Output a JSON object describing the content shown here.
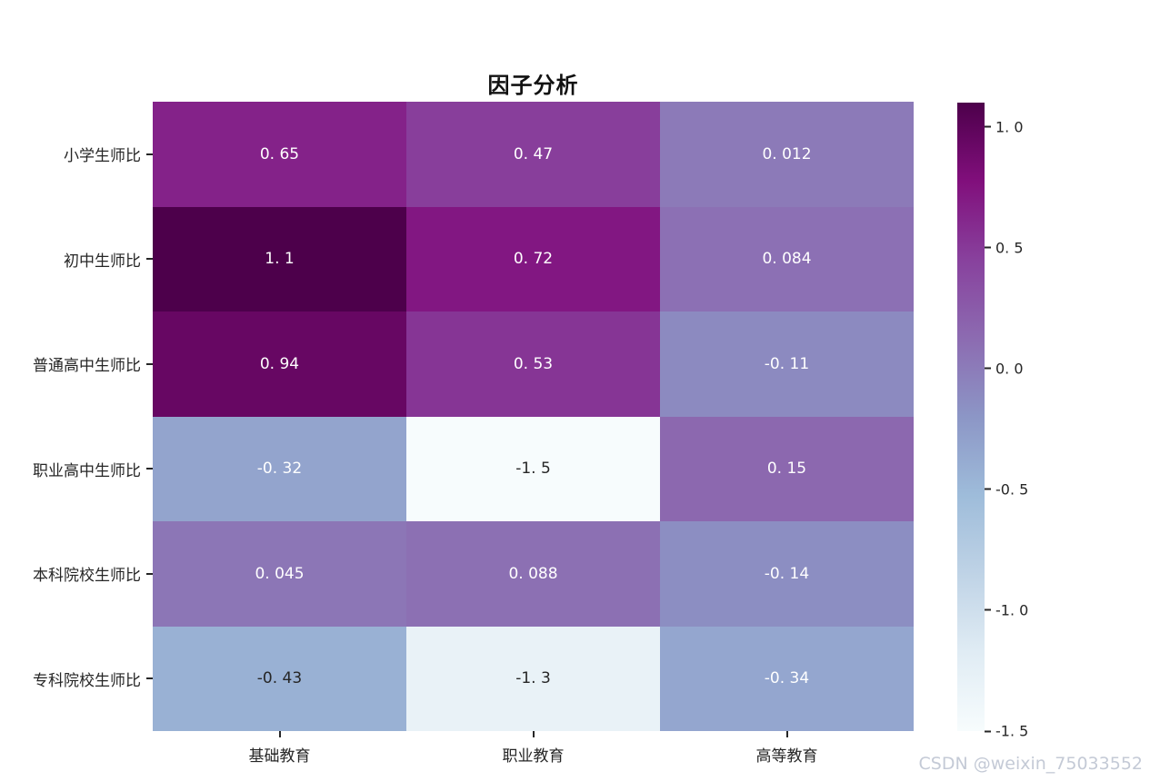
{
  "title": "因子分析",
  "watermark": "CSDN @weixin_75033552",
  "colors": {
    "background": "#ffffff",
    "annot_light": "#ffffff",
    "annot_dark": "#262626",
    "tick_label": "#262626",
    "watermark": "#c4cad6"
  },
  "chart_data": {
    "type": "heatmap",
    "title": "因子分析",
    "columns": [
      "基础教育",
      "职业教育",
      "高等教育"
    ],
    "rows": [
      "小学生师比",
      "初中生师比",
      "普通高中生师比",
      "职业高中生师比",
      "本科院校生师比",
      "专科院校生师比"
    ],
    "values": [
      [
        0.65,
        0.47,
        0.012
      ],
      [
        1.1,
        0.72,
        0.084
      ],
      [
        0.94,
        0.53,
        -0.11
      ],
      [
        -0.32,
        -1.5,
        0.15
      ],
      [
        0.045,
        0.088,
        -0.14
      ],
      [
        -0.43,
        -1.3,
        -0.34
      ]
    ],
    "cell_labels": [
      [
        "0. 65",
        "0. 47",
        "0. 012"
      ],
      [
        "1. 1",
        "0. 72",
        "0. 084"
      ],
      [
        "0. 94",
        "0. 53",
        "-0. 11"
      ],
      [
        "-0. 32",
        "-1. 5",
        "0. 15"
      ],
      [
        "0. 045",
        "0. 088",
        "-0. 14"
      ],
      [
        "-0. 43",
        "-1. 3",
        "-0. 34"
      ]
    ],
    "vmin": -1.5,
    "vmax": 1.1,
    "colormap": {
      "name": "BuPu",
      "stops": [
        "#f7fcfd",
        "#e0ecf4",
        "#bfd3e6",
        "#9ebcda",
        "#8c96c6",
        "#8c6bb1",
        "#88419d",
        "#810f7c",
        "#4d004b"
      ]
    },
    "colorbar_ticks": [
      "1. 0",
      "0. 5",
      "0. 0",
      "-0. 5",
      "-1. 0",
      "-1. 5"
    ],
    "colorbar_tick_values": [
      1.0,
      0.5,
      0.0,
      -0.5,
      -1.0,
      -1.5
    ],
    "legend_position": "right",
    "grid": false
  }
}
